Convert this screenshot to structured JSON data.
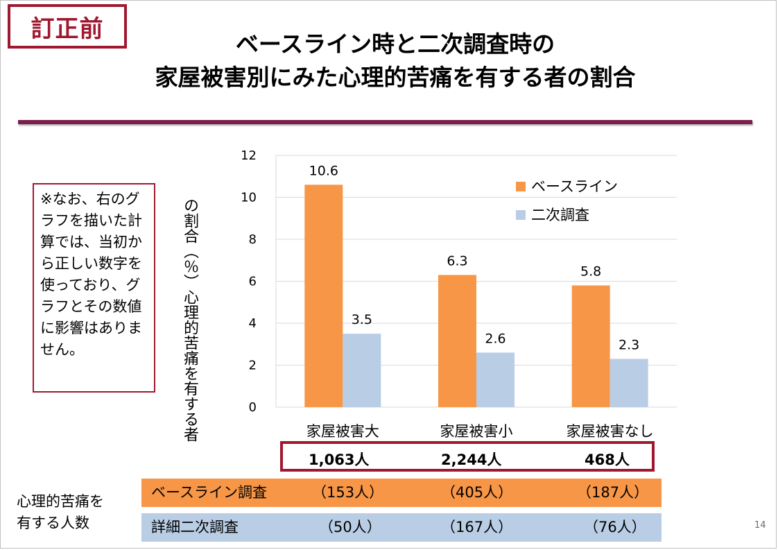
{
  "badge": "訂正前",
  "title": {
    "line1": "ベースライン時と二次調査時の",
    "line2": "家屋被害別にみた心理的苦痛を有する者の割合"
  },
  "note": "※なお、右のグラフを描いた計算では、当初から正しい数字を使っており、グラフとその数値に影響はありません。",
  "ylabel": {
    "col1": "心理的苦痛を有する者",
    "col2": "の割合（％）"
  },
  "chart_data": {
    "type": "bar",
    "categories": [
      "家屋被害大",
      "家屋被害小",
      "家屋被害なし"
    ],
    "series": [
      {
        "name": "ベースライン",
        "values": [
          10.6,
          6.3,
          5.8
        ],
        "labels": [
          "10.6",
          "6.3",
          "5.8"
        ],
        "color": "#f79646"
      },
      {
        "name": "二次調査",
        "values": [
          3.5,
          2.6,
          2.3
        ],
        "labels": [
          "3.5",
          "2.6",
          "2.3"
        ],
        "color": "#b9cde5"
      }
    ],
    "ylim": [
      0,
      12
    ],
    "yticks": [
      "0",
      "2",
      "4",
      "6",
      "8",
      "10",
      "12"
    ],
    "grid": true,
    "legend": "top-right"
  },
  "totals": [
    "1,063人",
    "2,244人",
    "468人"
  ],
  "distress_label": {
    "line1": "心理的苦痛を",
    "line2": "有する人数"
  },
  "rows": [
    {
      "name": "ベースライン調査",
      "values": [
        "（153人）",
        "（405人）",
        "（187人）"
      ],
      "color": "#f79646"
    },
    {
      "name": "詳細二次調査",
      "values": [
        "（50人）",
        "（167人）",
        "（76人）"
      ],
      "color": "#b9cde5"
    }
  ],
  "page_number": "14"
}
